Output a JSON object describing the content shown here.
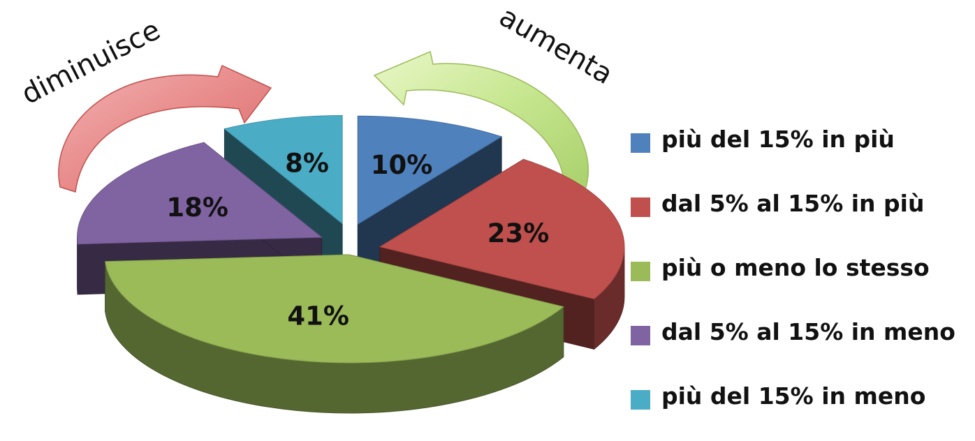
{
  "chart_data": {
    "type": "pie",
    "style": "3d-exploded",
    "categories": [
      "più del 15% in più",
      "dal 5% al 15% in più",
      "più o meno lo stesso",
      "dal 5% al 15% in meno",
      "più del 15% in meno"
    ],
    "values": [
      10,
      23,
      41,
      18,
      8
    ],
    "data_labels": [
      "10%",
      "23%",
      "41%",
      "18%",
      "8%"
    ],
    "colors": [
      "#4f81bd",
      "#c0504d",
      "#9bbb59",
      "#8064a2",
      "#4bacc6"
    ],
    "legend_position": "right",
    "annotations": {
      "left_arrow": {
        "label": "diminuisce",
        "color": "#e06666"
      },
      "right_arrow": {
        "label": "aumenta",
        "color": "#b5dc7a"
      }
    }
  }
}
